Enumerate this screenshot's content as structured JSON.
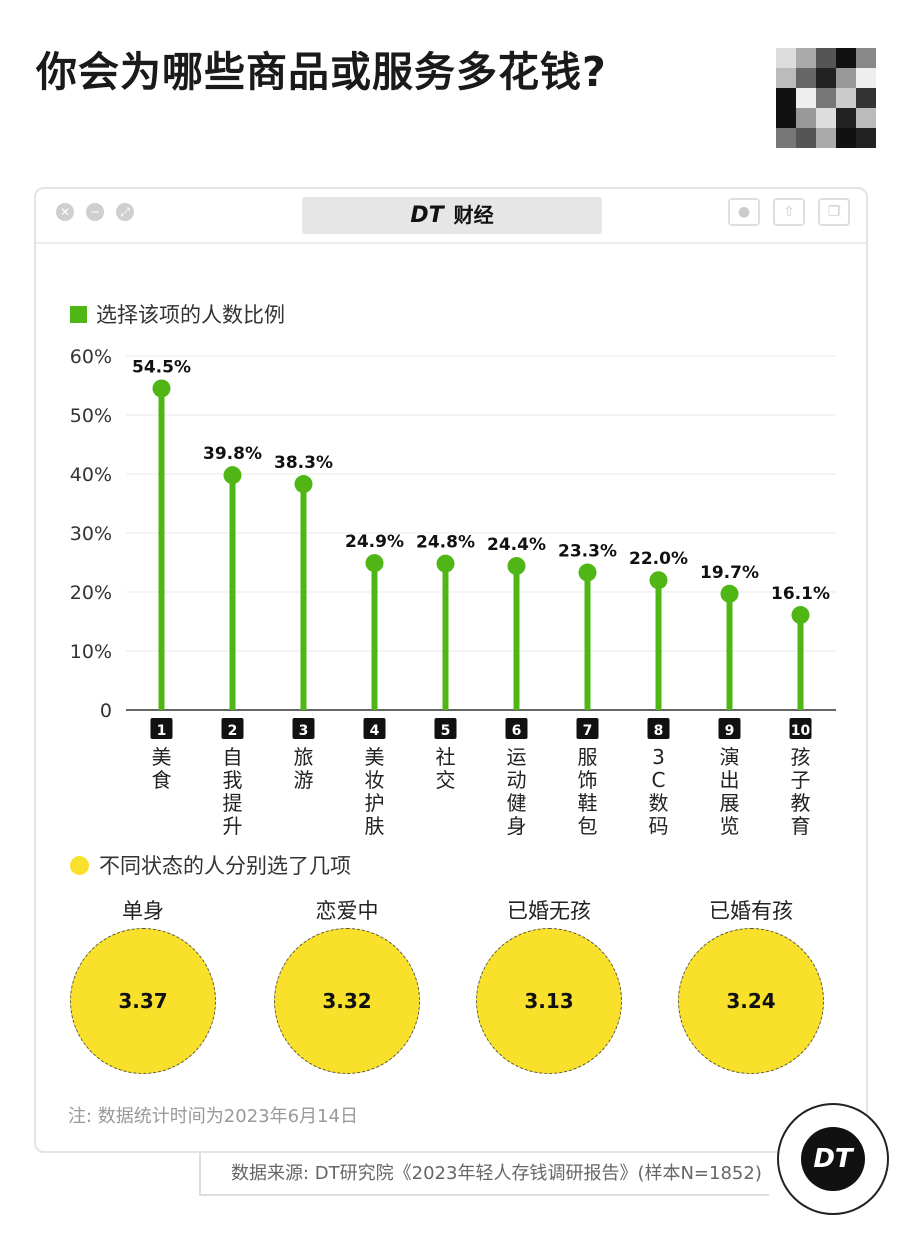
{
  "page": {
    "title": "你会为哪些商品或服务多花钱?"
  },
  "window": {
    "brand_mark": "DT",
    "brand_name": "财经"
  },
  "legend_bar": "选择该项的人数比例",
  "legend_circle": "不同状态的人分别选了几项",
  "chart_data": [
    {
      "type": "bar",
      "style": "lollipop",
      "color": "#4fb616",
      "categories": [
        "美食",
        "自我提升",
        "旅游",
        "美妆护肤",
        "社交",
        "运动健身",
        "服饰鞋包",
        "3C数码",
        "演出展览",
        "孩子教育"
      ],
      "ranks": [
        "1",
        "2",
        "3",
        "4",
        "5",
        "6",
        "7",
        "8",
        "9",
        "10"
      ],
      "values": [
        54.5,
        39.8,
        38.3,
        24.9,
        24.8,
        24.4,
        23.3,
        22.0,
        19.7,
        16.1
      ],
      "value_labels": [
        "54.5%",
        "39.8%",
        "38.3%",
        "24.9%",
        "24.8%",
        "24.4%",
        "23.3%",
        "22.0%",
        "19.7%",
        "16.1%"
      ],
      "yticks": [
        "0",
        "10%",
        "20%",
        "30%",
        "40%",
        "50%",
        "60%"
      ],
      "ylim": [
        0,
        60
      ],
      "grid": true
    },
    {
      "type": "bubble",
      "color": "#f9e12b",
      "categories": [
        "单身",
        "恋爱中",
        "已婚无孩",
        "已婚有孩"
      ],
      "values": [
        3.37,
        3.32,
        3.13,
        3.24
      ]
    }
  ],
  "footer": {
    "note": "注: 数据统计时间为2023年6月14日",
    "source": "数据来源: DT研究院《2023年轻人存钱调研报告》(样本N=1852)",
    "logo": "DT"
  }
}
